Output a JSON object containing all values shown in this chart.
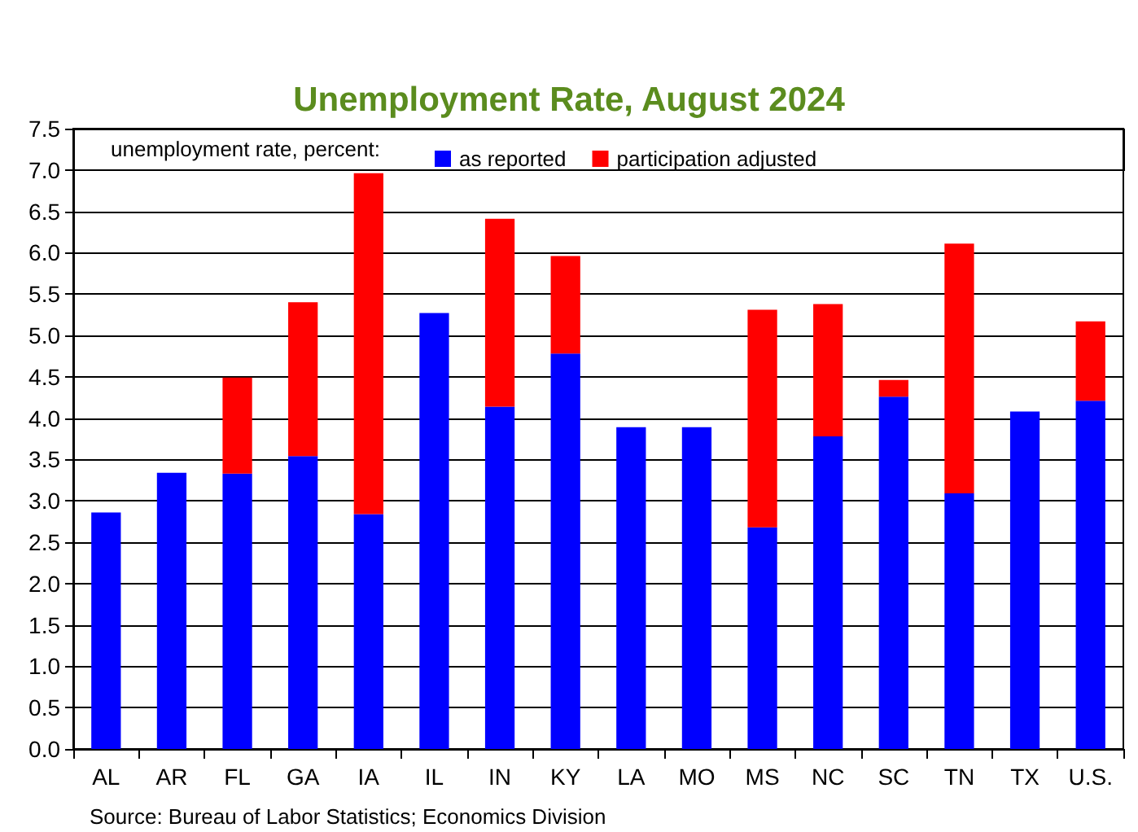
{
  "chart_data": {
    "type": "bar",
    "title": "Unemployment Rate, August 2024",
    "legend_title": "unemployment rate, percent:",
    "categories": [
      "AL",
      "AR",
      "FL",
      "GA",
      "IA",
      "IL",
      "IN",
      "KY",
      "LA",
      "MO",
      "MS",
      "NC",
      "SC",
      "TN",
      "TX",
      "U.S."
    ],
    "stacked": true,
    "series": [
      {
        "name": "as reported",
        "color": "#0000ff",
        "values": [
          2.86,
          3.34,
          3.33,
          3.54,
          2.84,
          5.27,
          4.14,
          4.78,
          3.89,
          3.89,
          2.68,
          3.78,
          4.26,
          3.09,
          4.08,
          4.21
        ]
      },
      {
        "name": "participation adjusted",
        "color": "#ff0000",
        "values": [
          null,
          null,
          1.16,
          1.86,
          4.12,
          null,
          2.27,
          1.18,
          null,
          null,
          2.63,
          1.6,
          0.2,
          3.02,
          null,
          0.96
        ]
      }
    ],
    "ylim": [
      0,
      7.5
    ],
    "yticks": [
      {
        "value": 0,
        "label": "0.0"
      },
      0.5,
      {
        "value": 1,
        "label": "1.0"
      },
      1.5,
      {
        "value": 2,
        "label": "2.0"
      },
      2.5,
      {
        "value": 3,
        "label": "3.0"
      },
      3.5,
      {
        "value": 4,
        "label": "4.0"
      },
      4.5,
      {
        "value": 5,
        "label": "5.0"
      },
      5.5,
      {
        "value": 6,
        "label": "6.0"
      },
      6.5,
      {
        "value": 7,
        "label": "7.0"
      },
      7.5
    ],
    "grid": "y",
    "legend": "top",
    "annotations": [
      "Source: Bureau of Labor Statistics; Economics Division"
    ]
  }
}
